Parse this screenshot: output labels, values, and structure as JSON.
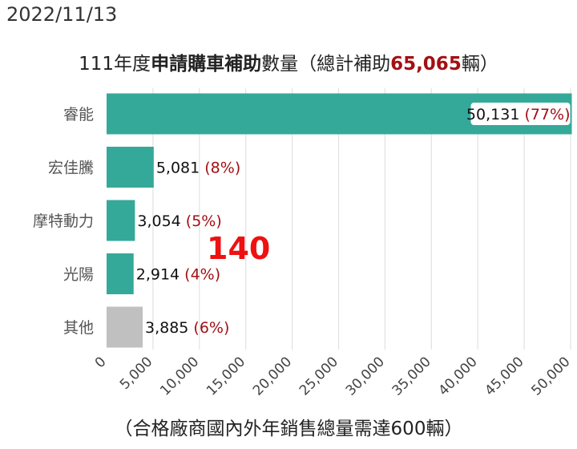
{
  "date": "2022/11/13",
  "title": {
    "part1": "111年度",
    "part2": "申請購車補助",
    "part3": "數量（總計補助",
    "total": "65,065",
    "part4": "輛）"
  },
  "overlay_number": "140",
  "footnote": "（合格廠商國內外年銷售總量需達600輛）",
  "colors": {
    "teal": "#35a999",
    "gray": "#c0c0c0",
    "pct": "#a30f14",
    "grid": "#e2e2e2"
  },
  "chart_data": {
    "type": "bar",
    "orientation": "horizontal",
    "categories": [
      "睿能",
      "宏佳騰",
      "摩特動力",
      "光陽",
      "其他"
    ],
    "values": [
      50131,
      5081,
      3054,
      2914,
      3885
    ],
    "value_labels": [
      "50,131",
      "5,081",
      "3,054",
      "2,914",
      "3,885"
    ],
    "percent_labels": [
      "(77%)",
      "(8%)",
      "(5%)",
      "(4%)",
      "(6%)"
    ],
    "bar_colors": [
      "#35a999",
      "#35a999",
      "#35a999",
      "#35a999",
      "#c0c0c0"
    ],
    "xlim": [
      0,
      50000
    ],
    "x_ticks": [
      0,
      5000,
      10000,
      15000,
      20000,
      25000,
      30000,
      35000,
      40000,
      45000,
      50000
    ],
    "x_tick_labels": [
      "0",
      "5,000",
      "10,000",
      "15,000",
      "20,000",
      "25,000",
      "30,000",
      "35,000",
      "40,000",
      "45,000",
      "50,000"
    ],
    "grid": true
  }
}
